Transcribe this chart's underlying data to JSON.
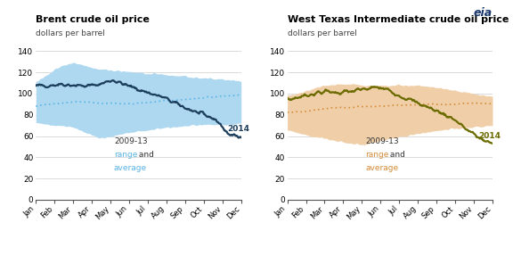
{
  "months": [
    "Jan",
    "Feb",
    "Mar",
    "Apr",
    "May",
    "Jun",
    "Jul",
    "Aug",
    "Sep",
    "Oct",
    "Nov",
    "Dec"
  ],
  "brent_2014": [
    107,
    108,
    109,
    108,
    107,
    109,
    113,
    108,
    104,
    100,
    96,
    90,
    85,
    80,
    76,
    62,
    58
  ],
  "brent_avg": [
    89,
    90,
    91,
    92,
    92,
    91,
    91,
    90,
    91,
    92,
    93,
    94,
    95,
    96,
    97,
    98,
    99
  ],
  "brent_high": [
    110,
    118,
    126,
    128,
    125,
    122,
    121,
    120,
    119,
    118,
    117,
    116,
    115,
    114,
    113,
    112,
    111
  ],
  "brent_low": [
    75,
    73,
    72,
    70,
    65,
    60,
    62,
    65,
    67,
    68,
    70,
    71,
    72,
    73,
    73,
    73,
    74
  ],
  "wti_2014": [
    94,
    97,
    100,
    102,
    101,
    102,
    104,
    106,
    103,
    97,
    92,
    87,
    82,
    76,
    66,
    58,
    53
  ],
  "wti_avg": [
    82,
    83,
    84,
    86,
    87,
    87,
    88,
    88,
    89,
    89,
    90,
    90,
    90,
    90,
    91,
    91,
    91
  ],
  "wti_high": [
    97,
    100,
    104,
    107,
    108,
    108,
    107,
    107,
    107,
    107,
    107,
    106,
    104,
    102,
    100,
    98,
    97
  ],
  "wti_low": [
    68,
    65,
    62,
    60,
    57,
    55,
    54,
    57,
    60,
    62,
    64,
    66,
    68,
    69,
    70,
    71,
    72
  ],
  "brent_color": "#1c3f5e",
  "brent_avg_color": "#5ab4e5",
  "brent_fill_color": "#aed8f0",
  "wti_color": "#6b6b00",
  "wti_avg_color": "#d48c3a",
  "wti_fill_color": "#f0cfa8",
  "ylim": [
    0,
    140
  ],
  "yticks": [
    0,
    20,
    40,
    60,
    80,
    100,
    120,
    140
  ],
  "brent_title": "Brent crude oil price",
  "wti_title": "West Texas Intermediate crude oil price",
  "subtitle": "dollars per barrel",
  "bg_color": "#ffffff"
}
